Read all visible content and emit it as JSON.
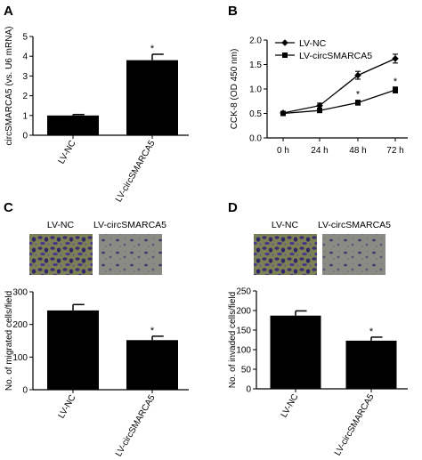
{
  "chart_data": [
    {
      "panel": "A",
      "type": "bar",
      "categories": [
        "LV-NC",
        "LV-circSMARCA5"
      ],
      "values": [
        1.0,
        3.8
      ],
      "errors": [
        0.05,
        0.3
      ],
      "significance": [
        "",
        "*"
      ],
      "ylabel": "circSMARCA5 (vs. U6 mRNA)",
      "ylim": [
        0,
        5
      ],
      "yticks": [
        "0",
        "1",
        "2",
        "3",
        "4",
        "5"
      ],
      "grid": false
    },
    {
      "panel": "B",
      "type": "line",
      "x": [
        "0 h",
        "24 h",
        "48 h",
        "72 h"
      ],
      "ylabel": "CCK-8 (OD 450 nm)",
      "ylim": [
        0,
        2.0
      ],
      "yticks": [
        "0.0",
        "0.5",
        "1.0",
        "1.5",
        "2.0"
      ],
      "legend_position": "top-left",
      "grid": false,
      "series": [
        {
          "name": "LV-NC",
          "marker": "diamond",
          "values": [
            0.51,
            0.66,
            1.28,
            1.62
          ],
          "errors": [
            0.03,
            0.05,
            0.08,
            0.09
          ],
          "significance": [
            "",
            "",
            "",
            ""
          ]
        },
        {
          "name": "LV-circSMARCA5",
          "marker": "square",
          "values": [
            0.5,
            0.56,
            0.72,
            0.98
          ],
          "errors": [
            0.03,
            0.04,
            0.05,
            0.06
          ],
          "significance": [
            "",
            "",
            "*",
            "*"
          ]
        }
      ]
    },
    {
      "panel": "C",
      "type": "bar",
      "image_labels": [
        "LV-NC",
        "LV-circSMARCA5"
      ],
      "categories": [
        "LV-NC",
        "LV-circSMARCA5"
      ],
      "values": [
        243,
        152
      ],
      "errors": [
        18,
        12
      ],
      "significance": [
        "",
        "*"
      ],
      "ylabel": "No. of migrated cells/field",
      "ylim": [
        0,
        300
      ],
      "yticks": [
        "0",
        "100",
        "200",
        "300"
      ],
      "grid": false
    },
    {
      "panel": "D",
      "type": "bar",
      "image_labels": [
        "LV-NC",
        "LV-circSMARCA5"
      ],
      "categories": [
        "LV-NC",
        "LV-circSMARCA5"
      ],
      "values": [
        187,
        123
      ],
      "errors": [
        12,
        9
      ],
      "significance": [
        "",
        "*"
      ],
      "ylabel": "No. of invaded cells/field",
      "ylim": [
        0,
        250
      ],
      "yticks": [
        "0",
        "50",
        "100",
        "150",
        "200",
        "250"
      ],
      "grid": false
    }
  ]
}
